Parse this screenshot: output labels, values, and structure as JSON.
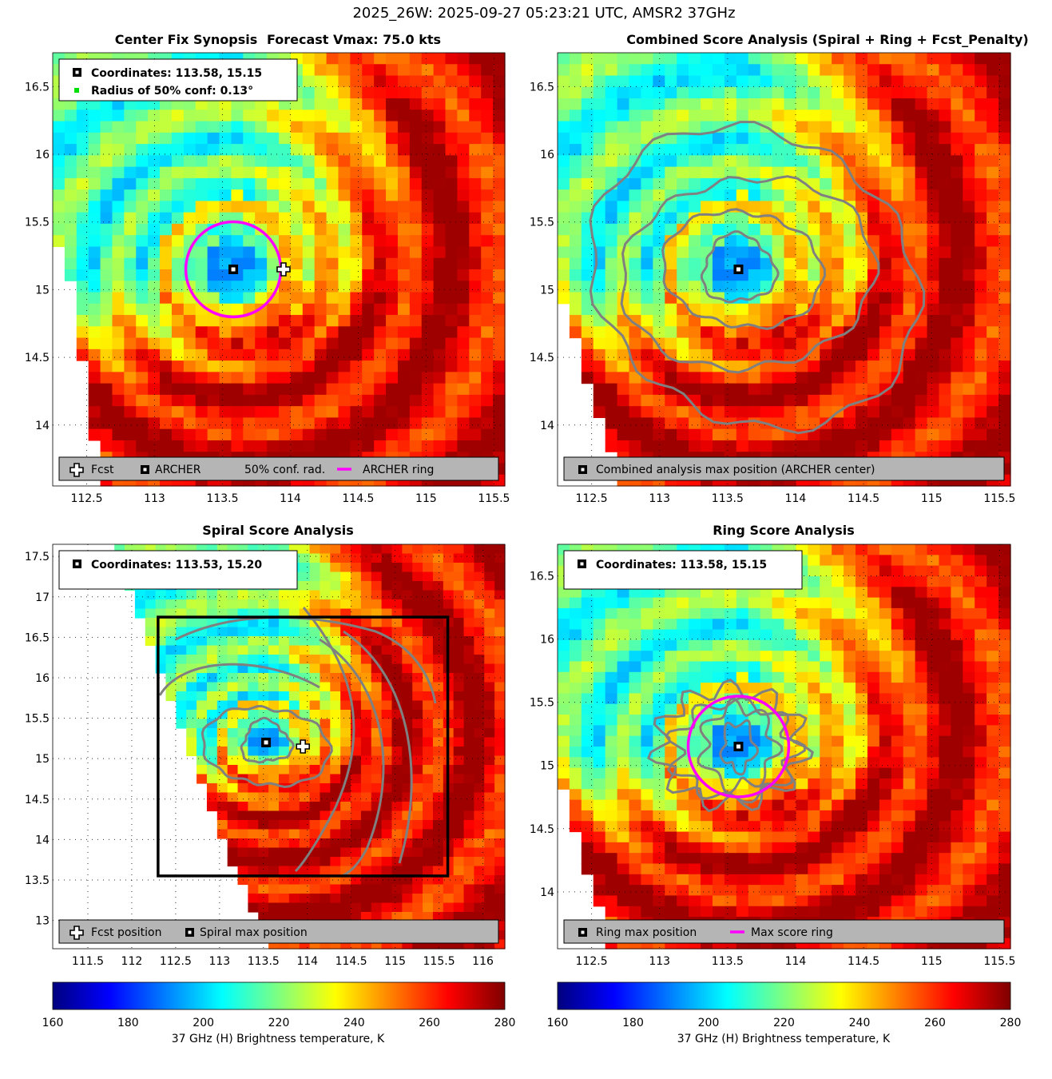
{
  "figure": {
    "title": "2025_26W: 2025-09-27 05:23:21 UTC, AMSR2 37GHz"
  },
  "colors": {
    "magenta": "#ff00ff",
    "contour": "#808080",
    "legend_bg": "#b5b5b5",
    "jet_stops": [
      "#00007f",
      "#0000ff",
      "#007fff",
      "#00ffff",
      "#7fff7f",
      "#ffff00",
      "#ff7f00",
      "#ff0000",
      "#7f0000"
    ]
  },
  "chart_data": [
    {
      "id": "synopsis",
      "type": "heatmap",
      "title": "Center Fix Synopsis",
      "subtitle": "Forecast Vmax: 75.0 kts",
      "xlim": [
        112.25,
        115.58
      ],
      "ylim": [
        13.55,
        16.75
      ],
      "xticks": [
        "112.5",
        "113",
        "113.5",
        "114",
        "114.5",
        "115",
        "115.5"
      ],
      "yticks": [
        "14",
        "14.5",
        "15",
        "15.5",
        "16",
        "16.5"
      ],
      "center": [
        113.58,
        15.15
      ],
      "forecast": [
        113.95,
        15.15
      ],
      "ring_radius_deg": 0.35,
      "info": [
        "Coordinates: 113.58, 15.15",
        "Radius of 50% conf: 0.13°"
      ],
      "legend": [
        "Fcst",
        "ARCHER",
        "50% conf. rad.",
        "ARCHER ring"
      ]
    },
    {
      "id": "combined",
      "type": "heatmap",
      "title": "Combined Score Analysis (Spiral + Ring + Fcst_Penalty)",
      "xlim": [
        112.25,
        115.58
      ],
      "ylim": [
        13.55,
        16.75
      ],
      "xticks": [
        "112.5",
        "113",
        "113.5",
        "114",
        "114.5",
        "115",
        "115.5"
      ],
      "yticks": [
        "14",
        "14.5",
        "15",
        "15.5",
        "16",
        "16.5"
      ],
      "center": [
        113.58,
        15.15
      ],
      "legend": [
        "Combined analysis max position (ARCHER center)"
      ]
    },
    {
      "id": "spiral",
      "type": "heatmap",
      "title": "Spiral Score Analysis",
      "xlim": [
        111.1,
        116.25
      ],
      "ylim": [
        12.65,
        17.65
      ],
      "xticks": [
        "111.5",
        "112",
        "112.5",
        "113",
        "113.5",
        "114",
        "114.5",
        "115",
        "115.5",
        "116"
      ],
      "yticks": [
        "13",
        "13.5",
        "14",
        "14.5",
        "15",
        "15.5",
        "16",
        "16.5",
        "17",
        "17.5"
      ],
      "center": [
        113.53,
        15.2
      ],
      "forecast": [
        113.95,
        15.15
      ],
      "search_box": [
        [
          112.3,
          13.55
        ],
        [
          115.6,
          16.75
        ]
      ],
      "info": [
        "Coordinates: 113.53, 15.20"
      ],
      "legend": [
        "Fcst position",
        "Spiral max position"
      ]
    },
    {
      "id": "ring",
      "type": "heatmap",
      "title": "Ring Score Analysis",
      "xlim": [
        112.25,
        115.58
      ],
      "ylim": [
        13.55,
        16.75
      ],
      "xticks": [
        "112.5",
        "113",
        "113.5",
        "114",
        "114.5",
        "115",
        "115.5"
      ],
      "yticks": [
        "14",
        "14.5",
        "15",
        "15.5",
        "16",
        "16.5"
      ],
      "center": [
        113.58,
        15.15
      ],
      "ring_radius_deg": 0.37,
      "info": [
        "Coordinates: 113.58, 15.15"
      ],
      "legend": [
        "Ring max position",
        "Max score ring"
      ]
    }
  ],
  "colorbars": [
    {
      "ticks": [
        "160",
        "180",
        "200",
        "220",
        "240",
        "260",
        "280"
      ],
      "range": [
        160,
        280
      ],
      "label": "37 GHz (H) Brightness temperature, K"
    },
    {
      "ticks": [
        "160",
        "180",
        "200",
        "220",
        "240",
        "260",
        "280"
      ],
      "range": [
        160,
        280
      ],
      "label": "37 GHz (H) Brightness temperature, K"
    }
  ]
}
